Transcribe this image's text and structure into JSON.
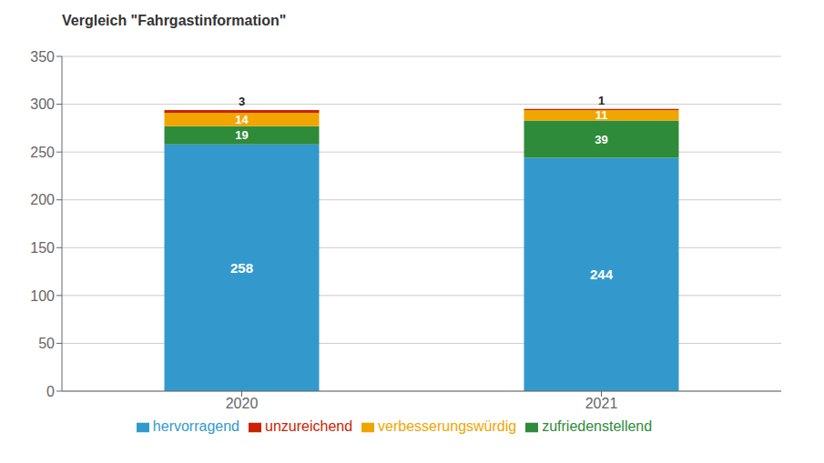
{
  "chart_data": {
    "type": "bar",
    "title": "Vergleich \"Fahrgastinformation\"",
    "categories": [
      "2020",
      "2021"
    ],
    "series": [
      {
        "name": "hervorragend",
        "color": "#3399cc",
        "values": [
          258,
          244
        ]
      },
      {
        "name": "zufriedenstellend",
        "color": "#2e8b3a",
        "values": [
          19,
          39
        ]
      },
      {
        "name": "verbesserungswürdig",
        "color": "#f0a500",
        "values": [
          14,
          11
        ]
      },
      {
        "name": "unzureichend",
        "color": "#cc2200",
        "values": [
          3,
          1
        ]
      }
    ],
    "stacked": true,
    "ylim": [
      0,
      350
    ],
    "yticks": [
      0,
      50,
      100,
      150,
      200,
      250,
      300,
      350
    ],
    "grid": true,
    "legend": "bottom",
    "data_labels": true
  }
}
